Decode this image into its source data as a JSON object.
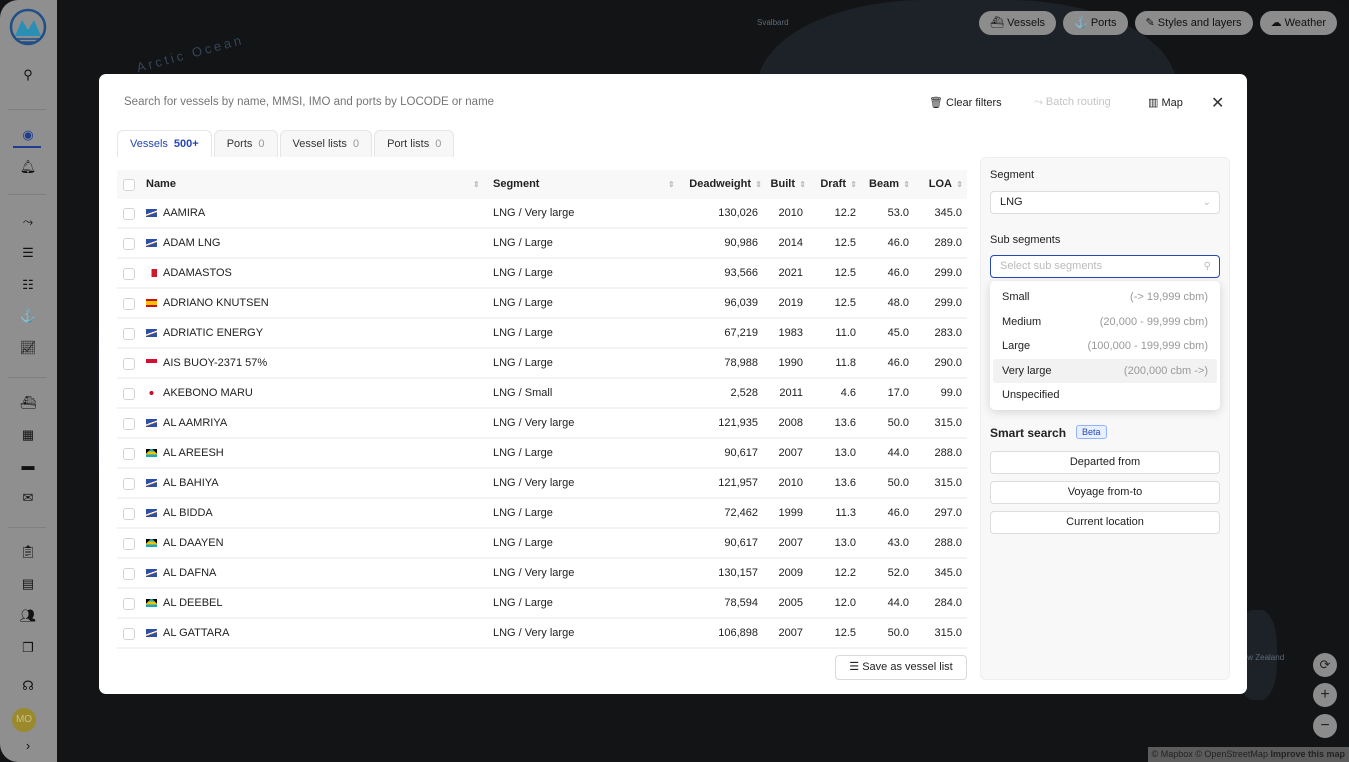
{
  "map": {
    "labels": [
      "Svalbard",
      "Arctic Ocean",
      "New Zealand"
    ],
    "attribution": "© Mapbox © OpenStreetMap",
    "improve": "Improve this map"
  },
  "top_buttons": [
    {
      "icon": "ship-icon",
      "label": "Vessels"
    },
    {
      "icon": "anchor-icon",
      "label": "Ports"
    },
    {
      "icon": "brush-icon",
      "label": "Styles and layers"
    },
    {
      "icon": "cloud-rain-icon",
      "label": "Weather"
    }
  ],
  "sidebar": {
    "avatar": "MO"
  },
  "modal": {
    "search_placeholder": "Search for vessels by name, MMSI, IMO and ports by LOCODE or name",
    "actions": {
      "clear": "Clear filters",
      "batch": "Batch routing",
      "map": "Map"
    },
    "tabs": [
      {
        "label": "Vessels",
        "count": "500+"
      },
      {
        "label": "Ports",
        "count": "0"
      },
      {
        "label": "Vessel lists",
        "count": "0"
      },
      {
        "label": "Port lists",
        "count": "0"
      }
    ],
    "columns": [
      "Name",
      "Segment",
      "Deadweight",
      "Built",
      "Draft",
      "Beam",
      "LOA"
    ],
    "rows": [
      {
        "flag": "MH",
        "name": "AAMIRA",
        "segment": "LNG / Very large",
        "dwt": "130,026",
        "built": "2010",
        "draft": "12.2",
        "beam": "53.0",
        "loa": "345.0"
      },
      {
        "flag": "MH",
        "name": "ADAM LNG",
        "segment": "LNG / Large",
        "dwt": "90,986",
        "built": "2014",
        "draft": "12.5",
        "beam": "46.0",
        "loa": "289.0"
      },
      {
        "flag": "MT",
        "name": "ADAMASTOS",
        "segment": "LNG / Large",
        "dwt": "93,566",
        "built": "2021",
        "draft": "12.5",
        "beam": "46.0",
        "loa": "299.0"
      },
      {
        "flag": "ES",
        "name": "ADRIANO KNUTSEN",
        "segment": "LNG / Large",
        "dwt": "96,039",
        "built": "2019",
        "draft": "12.5",
        "beam": "48.0",
        "loa": "299.0"
      },
      {
        "flag": "MH",
        "name": "ADRIATIC ENERGY",
        "segment": "LNG / Large",
        "dwt": "67,219",
        "built": "1983",
        "draft": "11.0",
        "beam": "45.0",
        "loa": "283.0"
      },
      {
        "flag": "ID",
        "name": "AIS BUOY-2371 57%",
        "segment": "LNG / Large",
        "dwt": "78,988",
        "built": "1990",
        "draft": "11.8",
        "beam": "46.0",
        "loa": "290.0"
      },
      {
        "flag": "JP",
        "name": "AKEBONO MARU",
        "segment": "LNG / Small",
        "dwt": "2,528",
        "built": "2011",
        "draft": "4.6",
        "beam": "17.0",
        "loa": "99.0"
      },
      {
        "flag": "MH",
        "name": "AL AAMRIYA",
        "segment": "LNG / Very large",
        "dwt": "121,935",
        "built": "2008",
        "draft": "13.6",
        "beam": "50.0",
        "loa": "315.0"
      },
      {
        "flag": "BS",
        "name": "AL AREESH",
        "segment": "LNG / Large",
        "dwt": "90,617",
        "built": "2007",
        "draft": "13.0",
        "beam": "44.0",
        "loa": "288.0"
      },
      {
        "flag": "MH",
        "name": "AL BAHIYA",
        "segment": "LNG / Very large",
        "dwt": "121,957",
        "built": "2010",
        "draft": "13.6",
        "beam": "50.0",
        "loa": "315.0"
      },
      {
        "flag": "MH",
        "name": "AL BIDDA",
        "segment": "LNG / Large",
        "dwt": "72,462",
        "built": "1999",
        "draft": "11.3",
        "beam": "46.0",
        "loa": "297.0"
      },
      {
        "flag": "BS",
        "name": "AL DAAYEN",
        "segment": "LNG / Large",
        "dwt": "90,617",
        "built": "2007",
        "draft": "13.0",
        "beam": "43.0",
        "loa": "288.0"
      },
      {
        "flag": "MH",
        "name": "AL DAFNA",
        "segment": "LNG / Very large",
        "dwt": "130,157",
        "built": "2009",
        "draft": "12.2",
        "beam": "52.0",
        "loa": "345.0"
      },
      {
        "flag": "BS",
        "name": "AL DEEBEL",
        "segment": "LNG / Large",
        "dwt": "78,594",
        "built": "2005",
        "draft": "12.0",
        "beam": "44.0",
        "loa": "284.0"
      },
      {
        "flag": "MH",
        "name": "AL GATTARA",
        "segment": "LNG / Very large",
        "dwt": "106,898",
        "built": "2007",
        "draft": "12.5",
        "beam": "50.0",
        "loa": "315.0"
      }
    ],
    "save_list": "Save as vessel list"
  },
  "filters": {
    "segment_label": "Segment",
    "segment_value": "LNG",
    "sub_label": "Sub segments",
    "sub_placeholder": "Select sub segments",
    "sub_options": [
      {
        "label": "Small",
        "range": "(-> 19,999 cbm)"
      },
      {
        "label": "Medium",
        "range": "(20,000 - 99,999 cbm)"
      },
      {
        "label": "Large",
        "range": "(100,000 - 199,999 cbm)"
      },
      {
        "label": "Very large",
        "range": "(200,000 cbm ->)"
      },
      {
        "label": "Unspecified",
        "range": ""
      }
    ],
    "highlighted_option": "Very large",
    "smart_search": "Smart search",
    "beta": "Beta",
    "smart_buttons": [
      "Departed from",
      "Voyage from-to",
      "Current location"
    ]
  }
}
